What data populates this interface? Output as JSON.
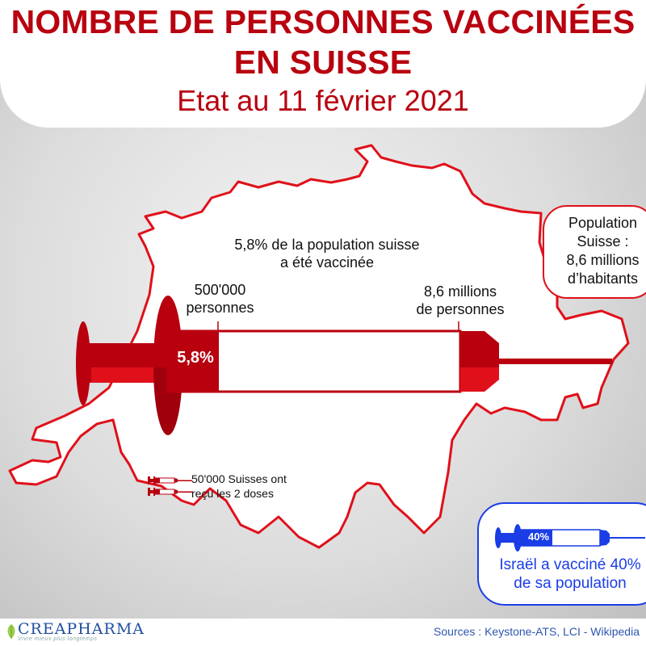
{
  "header": {
    "title_line1": "NOMBRE DE PERSONNES VACCINÉES",
    "title_line2": "EN SUISSE",
    "subtitle": "Etat au 11 février 2021"
  },
  "map": {
    "headline_line1": "5,8% de la population suisse",
    "headline_line2": "a été vaccinée",
    "left_label_line1": "500'000",
    "left_label_line2": "personnes",
    "right_label_line1": "8,6 millions",
    "right_label_line2": "de personnes",
    "syringe_percent": "5,8%",
    "fill_fraction": 0.058,
    "doses_line1": "50'000 Suisses ont",
    "doses_line2": "reçu les 2 doses"
  },
  "population_callout": {
    "line1": "Population",
    "line2": "Suisse :",
    "line3": "8,6 millions",
    "line4": "d’habitants"
  },
  "israel_callout": {
    "percent": "40%",
    "fill_fraction": 0.4,
    "line1": "Israël a vacciné 40%",
    "line2": "de sa population"
  },
  "footer": {
    "logo": "CREAPHARMA",
    "tagline": "Vivre mieux plus longtemps",
    "sources": "Sources : Keystone-ATS, LCI - Wikipedia"
  },
  "colors": {
    "swiss_red": "#b8000f",
    "bright_red": "#e0101a",
    "israel_blue": "#1a3de6"
  },
  "icons": [
    "switzerland-map-icon",
    "syringe-icon",
    "small-syringe-icon",
    "blue-syringe-icon",
    "creapharma-logo-icon"
  ]
}
